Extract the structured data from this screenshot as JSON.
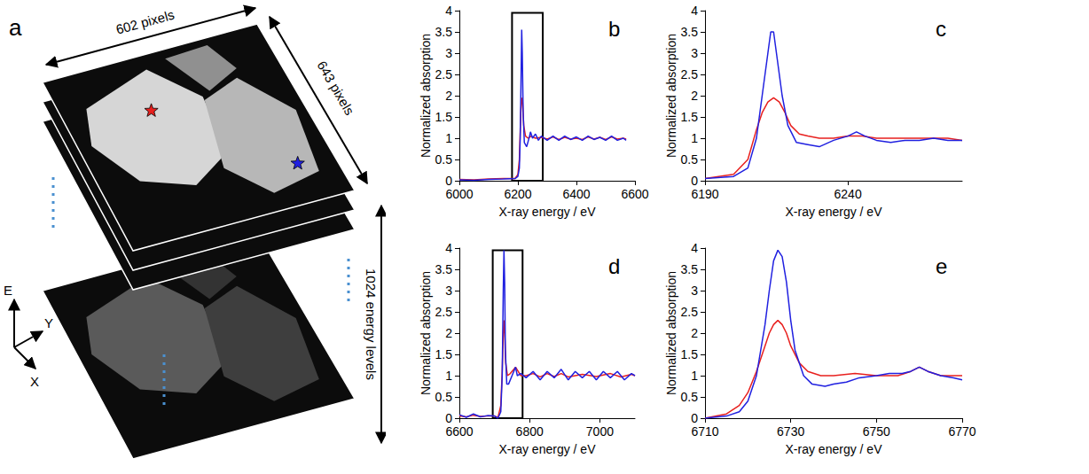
{
  "panel_a": {
    "label": "a",
    "width_label": "602 pixels",
    "height_label": "643 pixels",
    "depth_label": "1024 energy levels",
    "axes": [
      "E",
      "Y",
      "X"
    ],
    "markers": [
      {
        "color": "#e8201e"
      },
      {
        "color": "#2020e0"
      }
    ]
  },
  "chart_data": [
    {
      "type": "line",
      "panel_label": "b",
      "xlabel": "X-ray energy / eV",
      "ylabel": "Normalized absorption",
      "xlim": [
        6000,
        6600
      ],
      "xticks": [
        6000,
        6200,
        6400,
        6600
      ],
      "ylim": [
        0,
        4
      ],
      "yticks": [
        0,
        0.5,
        1,
        1.5,
        2,
        2.5,
        3,
        3.5,
        4
      ],
      "grid": false,
      "highlight_box": {
        "x": [
          6180,
          6285
        ],
        "y": [
          0,
          3.95
        ]
      },
      "series": [
        {
          "color": "#e8201e",
          "x": [
            6000,
            6050,
            6100,
            6150,
            6190,
            6200,
            6205,
            6208,
            6210,
            6212,
            6214,
            6216,
            6220,
            6226,
            6235,
            6245,
            6260,
            6280,
            6300,
            6320,
            6340,
            6360,
            6380,
            6400,
            6420,
            6440,
            6460,
            6480,
            6500,
            6520,
            6540,
            6560,
            6570
          ],
          "values": [
            0.03,
            0.02,
            0.04,
            0.05,
            0.05,
            0.15,
            0.5,
            1.2,
            1.6,
            1.85,
            1.95,
            1.85,
            1.3,
            1.05,
            1.0,
            1.05,
            1.0,
            1.02,
            0.98,
            1.03,
            0.97,
            1.02,
            0.98,
            1.0,
            0.97,
            1.03,
            0.98,
            1.02,
            0.97,
            1.03,
            0.98,
            1.0,
            0.98
          ]
        },
        {
          "color": "#2020e0",
          "x": [
            6000,
            6050,
            6100,
            6150,
            6190,
            6200,
            6205,
            6208,
            6210,
            6213,
            6215,
            6218,
            6222,
            6230,
            6240,
            6243,
            6250,
            6260,
            6270,
            6280,
            6300,
            6320,
            6340,
            6360,
            6380,
            6400,
            6420,
            6440,
            6460,
            6480,
            6500,
            6520,
            6540,
            6560,
            6570
          ],
          "values": [
            0.02,
            0.01,
            0.03,
            0.04,
            0.05,
            0.1,
            0.3,
            1.0,
            2.0,
            3.55,
            3.0,
            1.6,
            0.9,
            0.8,
            1.05,
            1.15,
            1.0,
            1.1,
            0.95,
            1.05,
            0.95,
            1.05,
            0.95,
            1.05,
            0.97,
            1.03,
            0.95,
            1.05,
            0.97,
            1.02,
            0.95,
            1.05,
            0.95,
            1.0,
            0.95
          ]
        }
      ]
    },
    {
      "type": "line",
      "panel_label": "c",
      "xlabel": "X-ray energy / eV",
      "ylabel": "Normalized absorption",
      "xlim": [
        6190,
        6280
      ],
      "xticks": [
        6190,
        6240
      ],
      "ylim": [
        0,
        4
      ],
      "yticks": [
        0,
        0.5,
        1,
        1.5,
        2,
        2.5,
        3,
        3.5,
        4
      ],
      "grid": false,
      "series": [
        {
          "color": "#e8201e",
          "x": [
            6190,
            6200,
            6205,
            6208,
            6210,
            6212,
            6214,
            6216,
            6218,
            6220,
            6223,
            6226,
            6230,
            6235,
            6240,
            6245,
            6250,
            6255,
            6260,
            6265,
            6270,
            6275,
            6280
          ],
          "values": [
            0.05,
            0.15,
            0.5,
            1.2,
            1.6,
            1.85,
            1.95,
            1.85,
            1.6,
            1.3,
            1.1,
            1.05,
            1.0,
            1.0,
            1.05,
            1.05,
            1.0,
            1.0,
            1.0,
            1.0,
            1.0,
            1.0,
            0.95
          ]
        },
        {
          "color": "#2020e0",
          "x": [
            6190,
            6200,
            6205,
            6208,
            6210,
            6212,
            6213,
            6214,
            6215,
            6217,
            6219,
            6222,
            6226,
            6230,
            6235,
            6240,
            6243,
            6246,
            6250,
            6255,
            6260,
            6265,
            6270,
            6275,
            6280
          ],
          "values": [
            0.05,
            0.1,
            0.3,
            1.0,
            2.0,
            3.0,
            3.5,
            3.5,
            3.0,
            2.0,
            1.3,
            0.9,
            0.85,
            0.8,
            0.95,
            1.05,
            1.15,
            1.05,
            0.95,
            0.9,
            0.95,
            0.95,
            1.0,
            0.95,
            0.95
          ]
        }
      ]
    },
    {
      "type": "line",
      "panel_label": "d",
      "xlabel": "X-ray energy / eV",
      "ylabel": "Normalized absorption",
      "xlim": [
        6600,
        7100
      ],
      "xticks": [
        6600,
        6800,
        7000
      ],
      "ylim": [
        0,
        4
      ],
      "yticks": [
        0,
        0.5,
        1,
        1.5,
        2,
        2.5,
        3,
        3.5,
        4
      ],
      "grid": false,
      "highlight_box": {
        "x": [
          6695,
          6780
        ],
        "y": [
          0,
          3.95
        ]
      },
      "series": [
        {
          "color": "#e8201e",
          "x": [
            6600,
            6620,
            6640,
            6660,
            6680,
            6700,
            6710,
            6718,
            6722,
            6725,
            6727,
            6729,
            6732,
            6737,
            6745,
            6760,
            6775,
            6790,
            6810,
            6830,
            6850,
            6870,
            6890,
            6910,
            6950,
            6990,
            7030,
            7060,
            7090,
            7100
          ],
          "values": [
            0.05,
            0.03,
            0.07,
            0.04,
            0.05,
            0.05,
            0.02,
            0.3,
            1.1,
            2.0,
            2.3,
            2.0,
            1.3,
            1.0,
            1.05,
            1.2,
            1.0,
            1.0,
            1.05,
            0.97,
            1.05,
            0.98,
            1.05,
            0.97,
            1.03,
            0.98,
            1.05,
            0.97,
            1.03,
            1.0
          ]
        },
        {
          "color": "#2020e0",
          "x": [
            6600,
            6620,
            6640,
            6660,
            6680,
            6700,
            6710,
            6718,
            6722,
            6725,
            6727,
            6729,
            6731,
            6735,
            6740,
            6750,
            6760,
            6765,
            6775,
            6790,
            6810,
            6830,
            6850,
            6870,
            6890,
            6910,
            6930,
            6950,
            6970,
            6990,
            7010,
            7030,
            7050,
            7070,
            7090,
            7100
          ],
          "values": [
            0.08,
            0.02,
            0.1,
            0.03,
            0.06,
            0.05,
            0.0,
            0.15,
            1.0,
            3.0,
            3.95,
            3.2,
            1.6,
            0.8,
            0.8,
            1.0,
            1.2,
            1.0,
            1.05,
            0.95,
            1.1,
            0.9,
            1.1,
            0.95,
            1.15,
            0.9,
            1.1,
            0.95,
            1.1,
            0.9,
            1.1,
            0.95,
            1.1,
            0.9,
            1.05,
            1.0
          ]
        }
      ]
    },
    {
      "type": "line",
      "panel_label": "e",
      "xlabel": "X-ray energy / eV",
      "ylabel": "Normalized absorption",
      "xlim": [
        6710,
        6770
      ],
      "xticks": [
        6710,
        6730,
        6750,
        6770
      ],
      "ylim": [
        0,
        4
      ],
      "yticks": [
        0,
        0.5,
        1,
        1.5,
        2,
        2.5,
        3,
        3.5,
        4
      ],
      "grid": false,
      "series": [
        {
          "color": "#e8201e",
          "x": [
            6710,
            6715,
            6718,
            6720,
            6722,
            6724,
            6725,
            6726,
            6727,
            6728,
            6729,
            6730,
            6732,
            6734,
            6737,
            6740,
            6745,
            6750,
            6755,
            6758,
            6760,
            6762,
            6765,
            6768,
            6770
          ],
          "values": [
            0.0,
            0.1,
            0.3,
            0.6,
            1.1,
            1.7,
            2.0,
            2.2,
            2.3,
            2.2,
            2.0,
            1.7,
            1.3,
            1.1,
            1.0,
            1.0,
            1.05,
            1.0,
            1.0,
            1.1,
            1.2,
            1.1,
            1.0,
            1.0,
            1.0
          ]
        },
        {
          "color": "#2020e0",
          "x": [
            6710,
            6715,
            6718,
            6720,
            6722,
            6724,
            6725,
            6726,
            6727,
            6728,
            6729,
            6730,
            6731,
            6733,
            6735,
            6738,
            6740,
            6743,
            6746,
            6750,
            6753,
            6756,
            6758,
            6760,
            6762,
            6765,
            6768,
            6770
          ],
          "values": [
            0.0,
            0.05,
            0.15,
            0.4,
            1.0,
            2.2,
            3.0,
            3.7,
            3.95,
            3.8,
            3.2,
            2.3,
            1.6,
            1.0,
            0.8,
            0.75,
            0.8,
            0.85,
            0.95,
            1.0,
            1.05,
            1.05,
            1.1,
            1.2,
            1.1,
            1.0,
            0.95,
            0.9
          ]
        }
      ]
    }
  ]
}
